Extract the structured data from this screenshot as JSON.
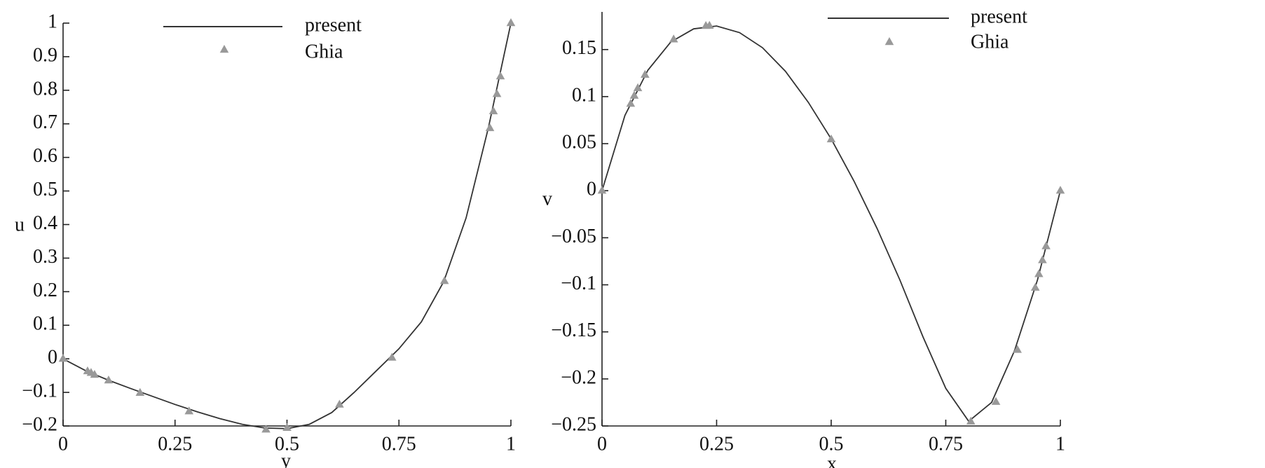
{
  "chart_data": [
    {
      "type": "line",
      "x_label": "y",
      "y_label": "u",
      "xlim": [
        0,
        1
      ],
      "ylim": [
        -0.2,
        1
      ],
      "xticks": [
        0,
        0.25,
        0.5,
        0.75,
        1
      ],
      "yticks": [
        {
          "value": -0.2,
          "label": "−0.2"
        },
        {
          "value": -0.1,
          "label": "−0.1"
        },
        0,
        0.1,
        0.2,
        0.3,
        0.4,
        0.5,
        0.6,
        0.7,
        0.8,
        0.9,
        1
      ],
      "series": [
        {
          "name": "present",
          "color": "#333333",
          "style": "line",
          "x": [
            0,
            0.05,
            0.1,
            0.15,
            0.2,
            0.25,
            0.3,
            0.35,
            0.4,
            0.45,
            0.5,
            0.55,
            0.6,
            0.65,
            0.7,
            0.75,
            0.8,
            0.85,
            0.9,
            0.95,
            1
          ],
          "values": [
            0,
            -0.035,
            -0.063,
            -0.088,
            -0.112,
            -0.136,
            -0.158,
            -0.178,
            -0.195,
            -0.206,
            -0.208,
            -0.195,
            -0.16,
            -0.1,
            -0.035,
            0.03,
            0.11,
            0.23,
            0.42,
            0.69,
            1.0
          ]
        },
        {
          "name": "Ghia",
          "color": "#999999",
          "style": "markers",
          "x": [
            1.0,
            0.9766,
            0.9688,
            0.9609,
            0.9531,
            0.8516,
            0.7344,
            0.6172,
            0.5,
            0.4531,
            0.2813,
            0.1719,
            0.1016,
            0.0703,
            0.0625,
            0.0547,
            0
          ],
          "values": [
            1.0,
            0.84123,
            0.78871,
            0.73722,
            0.68717,
            0.23151,
            0.00332,
            -0.13641,
            -0.20581,
            -0.2109,
            -0.15662,
            -0.1015,
            -0.06434,
            -0.04775,
            -0.04192,
            -0.03717,
            0
          ]
        }
      ]
    },
    {
      "type": "line",
      "x_label": "x",
      "y_label": "v",
      "xlim": [
        0,
        1
      ],
      "ylim": [
        -0.25,
        0.19
      ],
      "xticks": [
        0,
        0.25,
        0.5,
        0.75,
        1
      ],
      "yticks": [
        {
          "value": -0.25,
          "label": "−0.25"
        },
        {
          "value": -0.2,
          "label": "−0.2"
        },
        {
          "value": -0.15,
          "label": "−0.15"
        },
        {
          "value": -0.1,
          "label": "−0.1"
        },
        {
          "value": -0.05,
          "label": "−0.05"
        },
        0,
        0.05,
        0.1,
        0.15
      ],
      "series": [
        {
          "name": "present",
          "color": "#333333",
          "style": "line",
          "x": [
            0,
            0.05,
            0.1,
            0.15,
            0.2,
            0.25,
            0.3,
            0.35,
            0.4,
            0.45,
            0.5,
            0.55,
            0.6,
            0.65,
            0.7,
            0.75,
            0.8,
            0.85,
            0.9,
            0.95,
            1
          ],
          "values": [
            0,
            0.08,
            0.128,
            0.158,
            0.172,
            0.175,
            0.168,
            0.152,
            0.127,
            0.094,
            0.055,
            0.01,
            -0.04,
            -0.095,
            -0.155,
            -0.21,
            -0.245,
            -0.225,
            -0.17,
            -0.095,
            0
          ]
        },
        {
          "name": "Ghia",
          "color": "#999999",
          "style": "markers",
          "x": [
            1.0,
            0.9688,
            0.9609,
            0.9531,
            0.9453,
            0.9063,
            0.8594,
            0.8047,
            0.5,
            0.2344,
            0.2266,
            0.1563,
            0.0938,
            0.0781,
            0.0703,
            0.0625,
            0
          ],
          "values": [
            0,
            -0.05906,
            -0.07391,
            -0.08864,
            -0.10313,
            -0.16914,
            -0.22445,
            -0.24533,
            0.05454,
            0.17527,
            0.17507,
            0.16077,
            0.12317,
            0.1089,
            0.10091,
            0.09233,
            0
          ]
        }
      ]
    }
  ]
}
